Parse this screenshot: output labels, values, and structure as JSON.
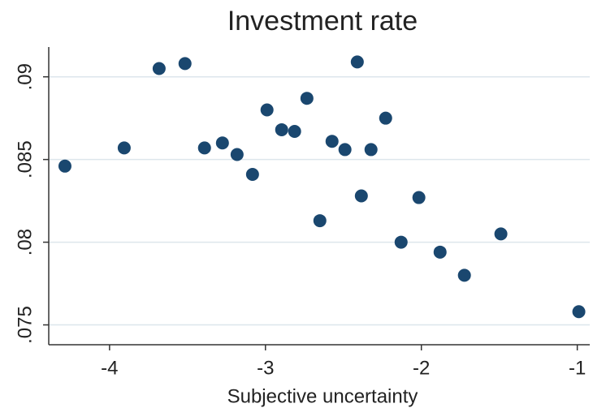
{
  "chart_data": {
    "type": "scatter",
    "title": "Investment rate",
    "x_label": "Subjective uncertainty",
    "x": [
      -4.286,
      -3.906,
      -3.682,
      -3.516,
      -3.391,
      -3.276,
      -3.182,
      -3.083,
      -2.99,
      -2.896,
      -2.813,
      -2.734,
      -2.651,
      -2.573,
      -2.49,
      -2.411,
      -2.385,
      -2.323,
      -2.229,
      -2.13,
      -2.016,
      -1.88,
      -1.724,
      -1.49,
      -0.99
    ],
    "values": [
      0.0846,
      0.0857,
      0.0905,
      0.0908,
      0.0857,
      0.086,
      0.0853,
      0.0841,
      0.088,
      0.0868,
      0.0867,
      0.0887,
      0.0813,
      0.0861,
      0.0856,
      0.0909,
      0.0828,
      0.0856,
      0.0875,
      0.08,
      0.0827,
      0.0794,
      0.078,
      0.0805,
      0.0758
    ],
    "color": "#1a476f",
    "xlim": [
      -4.39,
      -0.92
    ],
    "xticks": [
      -4,
      -3,
      -2,
      -1
    ],
    "ylim": [
      0.0738,
      0.0918
    ],
    "yticks": [
      {
        "value": 0.075,
        "label": ".075"
      },
      {
        "value": 0.08,
        "label": ".08"
      },
      {
        "value": 0.085,
        "label": ".085"
      },
      {
        "value": 0.09,
        "label": ".09"
      }
    ],
    "grid": true
  }
}
